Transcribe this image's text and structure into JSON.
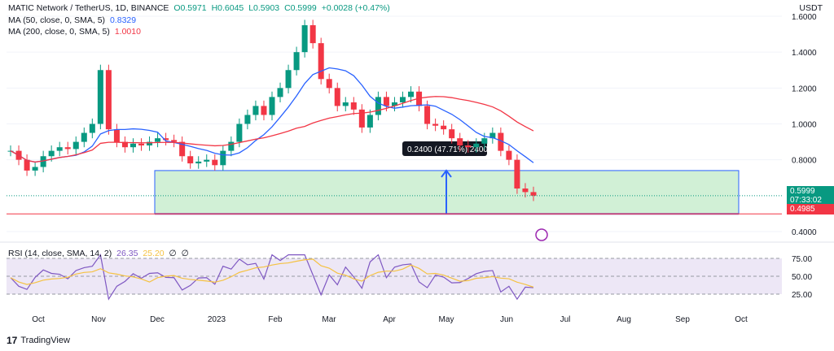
{
  "header": {
    "symbol": "MATIC Network / TetherUS, 1D, BINANCE",
    "o": "O0.5971",
    "h": "H0.6045",
    "l": "L0.5903",
    "c": "C0.5999",
    "chg": "+0.0028 (+0.47%)"
  },
  "ma50": {
    "label": "MA (50, close, 0, SMA, 5)",
    "value": "0.8329",
    "color": "#2962ff"
  },
  "ma200": {
    "label": "MA (200, close, 0, SMA, 5)",
    "value": "1.0010",
    "color": "#f23645"
  },
  "rsi": {
    "label": "RSI (14, close, SMA, 14, 2)",
    "v1": "26.35",
    "v2": "25.20",
    "z1": "∅",
    "z2": "∅"
  },
  "currency": "USDT",
  "price_tag": "0.5999",
  "countdown": "07:33:02",
  "low_tag": "0.4985",
  "measure_label": "0.2400 (47.71%) 2400",
  "brand": "TradingView",
  "chart_data": {
    "type": "candlestick",
    "y_axis_ticks": [
      "1.6000",
      "1.4000",
      "1.2000",
      "1.0000",
      "0.8000",
      "0.4000"
    ],
    "rsi_axis_ticks": [
      "75.00",
      "50.00",
      "25.00"
    ],
    "x_axis_ticks": [
      "Oct",
      "Nov",
      "Dec",
      "2023",
      "Feb",
      "Mar",
      "Apr",
      "May",
      "Jun",
      "Jul",
      "Aug",
      "Sep",
      "Oct"
    ],
    "ylim": [
      0.4,
      1.6
    ],
    "colors": {
      "up": "#089981",
      "down": "#f23645",
      "ma50": "#2962ff",
      "ma200": "#f23645",
      "rsi": "#7e57c2",
      "rsi_ma": "#f5c242"
    },
    "close_series": [
      0.85,
      0.8,
      0.74,
      0.76,
      0.82,
      0.85,
      0.87,
      0.86,
      0.9,
      0.95,
      1.0,
      1.3,
      0.97,
      0.9,
      0.87,
      0.89,
      0.88,
      0.9,
      0.92,
      0.91,
      0.9,
      0.82,
      0.78,
      0.79,
      0.8,
      0.77,
      0.85,
      0.9,
      1.0,
      1.05,
      1.1,
      1.05,
      1.15,
      1.2,
      1.3,
      1.4,
      1.55,
      1.45,
      1.25,
      1.2,
      1.1,
      1.12,
      1.08,
      0.98,
      1.05,
      1.15,
      1.1,
      1.12,
      1.15,
      1.18,
      1.1,
      1.0,
      0.99,
      0.97,
      0.92,
      0.88,
      0.87,
      0.89,
      0.92,
      0.95,
      0.85,
      0.8,
      0.64,
      0.62,
      0.6
    ]
  }
}
